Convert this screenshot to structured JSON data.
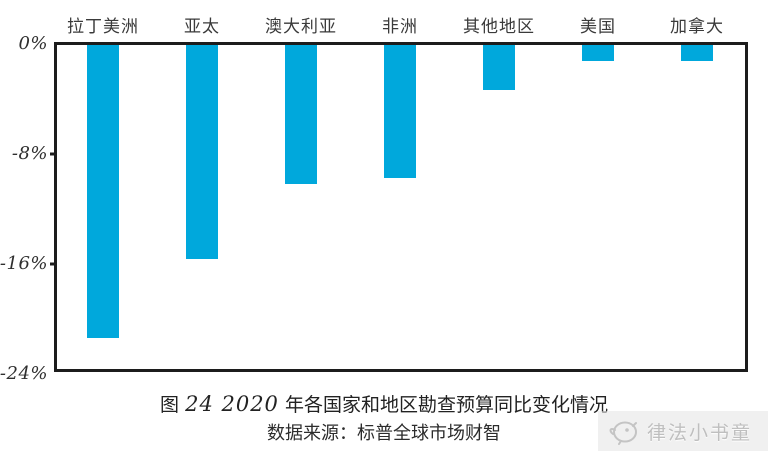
{
  "chart_data": {
    "type": "bar",
    "categories": [
      "拉丁美洲",
      "亚太",
      "澳大利亚",
      "非洲",
      "其他地区",
      "美国",
      "加拿大"
    ],
    "values": [
      -21.5,
      -15.8,
      -10.3,
      -9.9,
      -3.5,
      -1.4,
      -1.4
    ],
    "unit": "%",
    "title": "图 24 2020 年各国家和地区勘查预算同比变化情况",
    "title_parts": {
      "prefix": "图 ",
      "script_numbers": "24 2020",
      "rest": " 年各国家和地区勘查预算同比变化情况"
    },
    "source": "数据来源：标普全球市场财智",
    "xlabel": "",
    "ylabel": "",
    "ylim": [
      -24,
      0
    ],
    "ytick_labels": [
      "0%",
      "-8%",
      "-16%",
      "-24%"
    ],
    "ytick_values": [
      0,
      -8,
      -16,
      -24
    ],
    "grid": false,
    "legend": "none",
    "bar_color": "#00a8dc",
    "axis_color": "#1c1c1c"
  },
  "watermark": {
    "text": "律法小书童",
    "icon": "chick-face-icon"
  }
}
